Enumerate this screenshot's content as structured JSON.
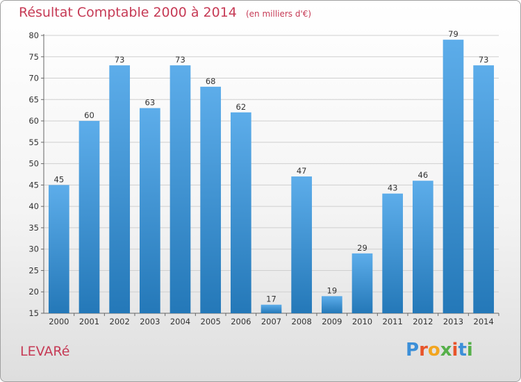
{
  "header": {
    "title": "Résultat Comptable 2000 à 2014",
    "subtitle": "(en milliers d'€)"
  },
  "footer": {
    "commune": "LEVARé",
    "logo_text": "Proxiti"
  },
  "colors": {
    "title": "#c63a55",
    "bar_top": "#5dadea",
    "bar_bottom": "#2478b8",
    "grid": "#cfcfcf",
    "logo": [
      "#3c8fd8",
      "#e8542a",
      "#f2a51f",
      "#56b04a",
      "#e8542a",
      "#3c8fd8",
      "#56b04a"
    ]
  },
  "chart_data": {
    "type": "bar",
    "title": "Résultat Comptable 2000 à 2014",
    "subtitle": "(en milliers d'€)",
    "xlabel": "",
    "ylabel": "",
    "categories": [
      "2000",
      "2001",
      "2002",
      "2003",
      "2004",
      "2005",
      "2006",
      "2007",
      "2008",
      "2009",
      "2010",
      "2011",
      "2012",
      "2013",
      "2014"
    ],
    "values": [
      45,
      60,
      73,
      63,
      73,
      68,
      62,
      17,
      47,
      19,
      29,
      43,
      46,
      79,
      73
    ],
    "ylim": [
      15,
      80
    ],
    "yticks": [
      15,
      20,
      25,
      30,
      35,
      40,
      45,
      50,
      55,
      60,
      65,
      70,
      75,
      80
    ],
    "grid": true,
    "legend": "none"
  }
}
